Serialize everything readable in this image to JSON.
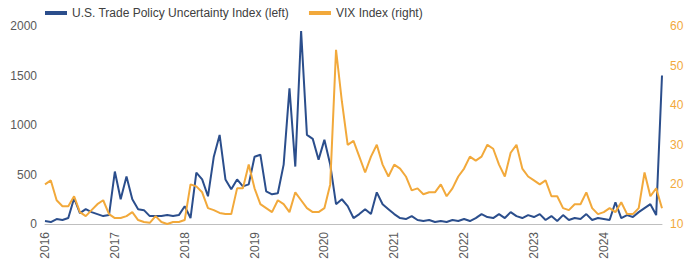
{
  "chart_data": {
    "type": "line",
    "categories": [
      "2016",
      null,
      null,
      null,
      null,
      null,
      null,
      null,
      null,
      null,
      null,
      null,
      "2017",
      null,
      null,
      null,
      null,
      null,
      null,
      null,
      null,
      null,
      null,
      null,
      "2018",
      null,
      null,
      null,
      null,
      null,
      null,
      null,
      null,
      null,
      null,
      null,
      "2019",
      null,
      null,
      null,
      null,
      null,
      null,
      null,
      null,
      null,
      null,
      null,
      "2020",
      null,
      null,
      null,
      null,
      null,
      null,
      null,
      null,
      null,
      null,
      null,
      "2021",
      null,
      null,
      null,
      null,
      null,
      null,
      null,
      null,
      null,
      null,
      null,
      "2022",
      null,
      null,
      null,
      null,
      null,
      null,
      null,
      null,
      null,
      null,
      null,
      "2023",
      null,
      null,
      null,
      null,
      null,
      null,
      null,
      null,
      null,
      null,
      null,
      "2024",
      null,
      null,
      null,
      null,
      null,
      null,
      null,
      null,
      null,
      null
    ],
    "series": [
      {
        "name": "U.S. Trade Policy Uncertainty Index (left)",
        "color": "#2B4E8C",
        "axis": "y",
        "values": [
          30,
          20,
          50,
          40,
          60,
          260,
          110,
          150,
          120,
          100,
          80,
          90,
          530,
          250,
          480,
          250,
          150,
          140,
          80,
          80,
          80,
          90,
          80,
          90,
          180,
          60,
          520,
          450,
          280,
          680,
          900,
          450,
          350,
          450,
          380,
          400,
          680,
          700,
          330,
          300,
          310,
          600,
          1370,
          580,
          1950,
          900,
          860,
          650,
          850,
          600,
          200,
          250,
          180,
          60,
          100,
          150,
          100,
          320,
          200,
          150,
          100,
          60,
          50,
          80,
          40,
          30,
          40,
          20,
          30,
          20,
          40,
          30,
          50,
          30,
          60,
          100,
          70,
          60,
          100,
          60,
          120,
          80,
          60,
          90,
          70,
          100,
          40,
          80,
          30,
          90,
          40,
          60,
          50,
          100,
          40,
          60,
          50,
          40,
          220,
          60,
          90,
          70,
          120,
          160,
          200,
          90,
          1500
        ]
      },
      {
        "name": "VIX Index (right)",
        "color": "#F2A93B",
        "axis": "y2",
        "values": [
          20,
          21,
          16,
          14.5,
          14.5,
          17,
          13,
          12,
          13.5,
          15,
          16,
          12.5,
          11.5,
          11.5,
          12,
          13,
          11,
          10.5,
          10.3,
          12,
          10.5,
          10,
          10.5,
          10.5,
          11,
          20,
          19.5,
          18,
          14,
          13.5,
          12.8,
          12.5,
          12.5,
          19,
          19,
          25,
          19,
          15,
          14,
          13,
          16,
          15,
          13,
          18,
          16,
          14,
          13,
          13,
          14,
          20,
          54,
          41,
          30,
          31,
          27,
          23,
          27,
          30,
          25,
          22,
          25,
          24,
          22,
          18.5,
          19,
          17.5,
          18,
          18,
          20,
          17,
          19,
          22,
          24,
          27,
          26,
          27,
          30,
          29,
          25,
          22,
          28,
          30,
          24,
          22,
          21,
          20,
          21,
          17,
          17,
          14,
          13.5,
          15,
          15,
          18,
          14,
          12.5,
          13,
          14,
          13,
          15.5,
          12.5,
          12.5,
          14,
          23,
          17,
          19,
          14
        ]
      }
    ],
    "ylim": [
      0,
      2000
    ],
    "yticks": [
      0,
      500,
      1000,
      1500,
      2000
    ],
    "y2lim": [
      10,
      60
    ],
    "y2ticks": [
      10,
      20,
      30,
      40,
      50,
      60
    ],
    "legend": "top",
    "grid": false
  }
}
